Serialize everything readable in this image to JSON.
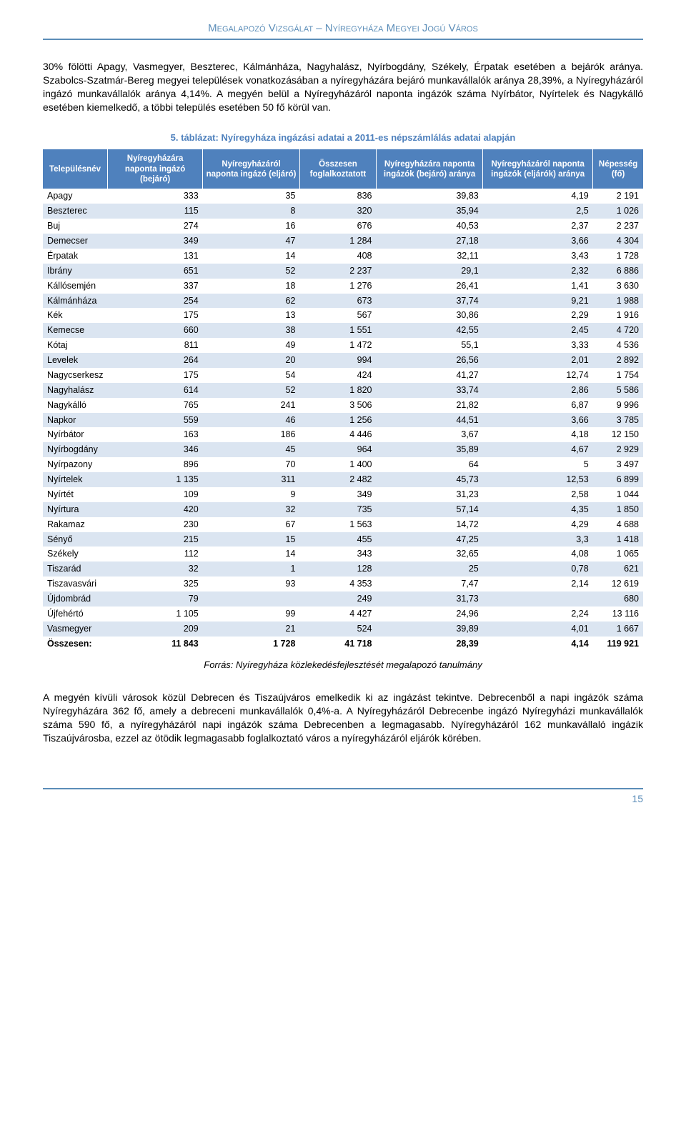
{
  "header": "Megalapozó Vizsgálat – Nyíregyháza Megyei Jogú Város",
  "para1": "30% fölötti Apagy, Vasmegyer, Beszterec, Kálmánháza, Nagyhalász, Nyírbogdány, Székely, Érpatak esetében a bejárók aránya. Szabolcs-Szatmár-Bereg megyei települések vonatkozásában a nyíregyházára bejáró munkavállalók aránya 28,39%, a Nyíregyházáról ingázó munkavállalók aránya 4,14%. A megyén belül a Nyíregyházáról naponta ingázók száma Nyírbátor, Nyírtelek és Nagykálló esetében kiemelkedő, a többi település esetében 50 fő körül van.",
  "table": {
    "caption": "5. táblázat: Nyíregyháza ingázási adatai a 2011-es népszámlálás adatai alapján",
    "columns": [
      "Településnév",
      "Nyíregyházára naponta ingázó (bejáró)",
      "Nyíregyházáról naponta ingázó (eljáró)",
      "Összesen foglalkoztatott",
      "Nyíregyházára naponta ingázók (bejáró) aránya",
      "Nyíregyházáról naponta ingázók (eljárók) aránya",
      "Népesség (fő)"
    ],
    "header_bg": "#4f81bd",
    "header_fg": "#ffffff",
    "row_band_bg": "#dbe5f1",
    "rows": [
      [
        "Apagy",
        "333",
        "35",
        "836",
        "39,83",
        "4,19",
        "2 191"
      ],
      [
        "Beszterec",
        "115",
        "8",
        "320",
        "35,94",
        "2,5",
        "1 026"
      ],
      [
        "Buj",
        "274",
        "16",
        "676",
        "40,53",
        "2,37",
        "2 237"
      ],
      [
        "Demecser",
        "349",
        "47",
        "1 284",
        "27,18",
        "3,66",
        "4 304"
      ],
      [
        "Érpatak",
        "131",
        "14",
        "408",
        "32,11",
        "3,43",
        "1 728"
      ],
      [
        "Ibrány",
        "651",
        "52",
        "2 237",
        "29,1",
        "2,32",
        "6 886"
      ],
      [
        "Kállósemjén",
        "337",
        "18",
        "1 276",
        "26,41",
        "1,41",
        "3 630"
      ],
      [
        "Kálmánháza",
        "254",
        "62",
        "673",
        "37,74",
        "9,21",
        "1 988"
      ],
      [
        "Kék",
        "175",
        "13",
        "567",
        "30,86",
        "2,29",
        "1 916"
      ],
      [
        "Kemecse",
        "660",
        "38",
        "1 551",
        "42,55",
        "2,45",
        "4 720"
      ],
      [
        "Kótaj",
        "811",
        "49",
        "1 472",
        "55,1",
        "3,33",
        "4 536"
      ],
      [
        "Levelek",
        "264",
        "20",
        "994",
        "26,56",
        "2,01",
        "2 892"
      ],
      [
        "Nagycserkesz",
        "175",
        "54",
        "424",
        "41,27",
        "12,74",
        "1 754"
      ],
      [
        "Nagyhalász",
        "614",
        "52",
        "1 820",
        "33,74",
        "2,86",
        "5 586"
      ],
      [
        "Nagykálló",
        "765",
        "241",
        "3 506",
        "21,82",
        "6,87",
        "9 996"
      ],
      [
        "Napkor",
        "559",
        "46",
        "1 256",
        "44,51",
        "3,66",
        "3 785"
      ],
      [
        "Nyírbátor",
        "163",
        "186",
        "4 446",
        "3,67",
        "4,18",
        "12 150"
      ],
      [
        "Nyírbogdány",
        "346",
        "45",
        "964",
        "35,89",
        "4,67",
        "2 929"
      ],
      [
        "Nyírpazony",
        "896",
        "70",
        "1 400",
        "64",
        "5",
        "3 497"
      ],
      [
        "Nyírtelek",
        "1 135",
        "311",
        "2 482",
        "45,73",
        "12,53",
        "6 899"
      ],
      [
        "Nyírtét",
        "109",
        "9",
        "349",
        "31,23",
        "2,58",
        "1 044"
      ],
      [
        "Nyírtura",
        "420",
        "32",
        "735",
        "57,14",
        "4,35",
        "1 850"
      ],
      [
        "Rakamaz",
        "230",
        "67",
        "1 563",
        "14,72",
        "4,29",
        "4 688"
      ],
      [
        "Sényő",
        "215",
        "15",
        "455",
        "47,25",
        "3,3",
        "1 418"
      ],
      [
        "Székely",
        "112",
        "14",
        "343",
        "32,65",
        "4,08",
        "1 065"
      ],
      [
        "Tiszarád",
        "32",
        "1",
        "128",
        "25",
        "0,78",
        "621"
      ],
      [
        "Tiszavasvári",
        "325",
        "93",
        "4 353",
        "7,47",
        "2,14",
        "12 619"
      ],
      [
        "Újdombrád",
        "79",
        "",
        "249",
        "31,73",
        "",
        "680"
      ],
      [
        "Újfehértó",
        "1 105",
        "99",
        "4 427",
        "24,96",
        "2,24",
        "13 116"
      ],
      [
        "Vasmegyer",
        "209",
        "21",
        "524",
        "39,89",
        "4,01",
        "1 667"
      ],
      [
        "Összesen:",
        "11 843",
        "1 728",
        "41 718",
        "28,39",
        "4,14",
        "119 921"
      ]
    ]
  },
  "source": "Forrás: Nyíregyháza közlekedésfejlesztését megalapozó tanulmány",
  "para2": "A megyén kívüli városok közül Debrecen és Tiszaújváros emelkedik ki az ingázást tekintve. Debrecenből a napi ingázók száma Nyíregyházára 362 fő, amely a debreceni munkavállalók 0,4%-a. A Nyíregyházáról Debrecenbe ingázó Nyíregyházi munkavállalók száma 590 fő, a nyíregyházáról napi ingázók száma Debrecenben a legmagasabb. Nyíregyházáról 162 munkavállaló ingázik Tiszaújvárosba, ezzel az ötödik legmagasabb foglalkoztató város a nyíregyházáról eljárók körében.",
  "page_number": "15"
}
